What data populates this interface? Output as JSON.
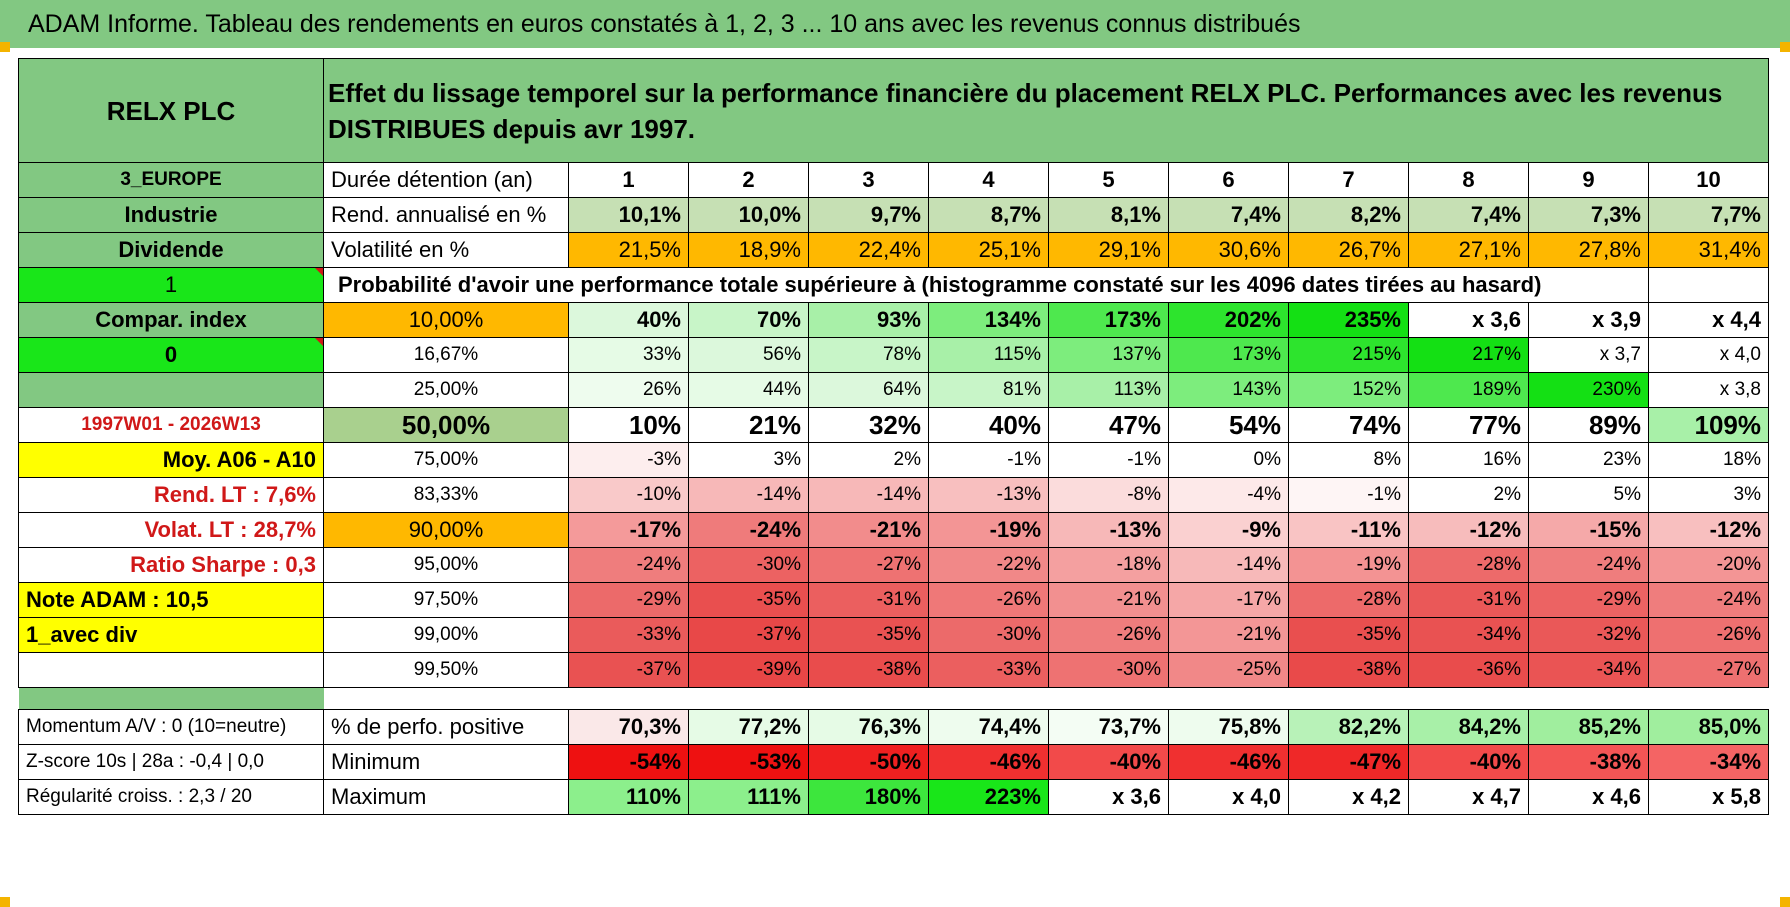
{
  "title": "ADAM Informe. Tableau des rendements en euros constatés à 1, 2, 3 ... 10 ans avec les revenus connus distribués",
  "header": {
    "left": "RELX PLC",
    "right": "Effet du lissage temporel sur la performance financière du placement RELX PLC. Performances avec les revenus DISTRIBUES depuis avr 1997."
  },
  "rows": [
    {
      "left": "3_EUROPE",
      "label": "Durée détention (an)",
      "values": [
        "1",
        "2",
        "3",
        "4",
        "5",
        "6",
        "7",
        "8",
        "9",
        "10"
      ]
    },
    {
      "left": "Industrie",
      "label": "Rend. annualisé en %",
      "values": [
        "10,1%",
        "10,0%",
        "9,7%",
        "8,7%",
        "8,1%",
        "7,4%",
        "8,2%",
        "7,4%",
        "7,3%",
        "7,7%"
      ]
    },
    {
      "left": "Dividende",
      "label": "Volatilité en %",
      "values": [
        "21,5%",
        "18,9%",
        "22,4%",
        "25,1%",
        "29,1%",
        "30,6%",
        "26,7%",
        "27,1%",
        "27,8%",
        "31,4%"
      ]
    },
    {
      "left": "1",
      "label": "Probabilité d'avoir une performance totale supérieure à (histogramme constaté sur les 4096 dates tirées au hasard)"
    },
    {
      "left": "Compar. index",
      "label": "10,00%",
      "values": [
        "40%",
        "70%",
        "93%",
        "134%",
        "173%",
        "202%",
        "235%",
        "x 3,6",
        "x 3,9",
        "x 4,4"
      ]
    },
    {
      "left": "0",
      "label": "16,67%",
      "values": [
        "33%",
        "56%",
        "78%",
        "115%",
        "137%",
        "173%",
        "215%",
        "217%",
        "x 3,7",
        "x 4,0"
      ]
    },
    {
      "left": "",
      "label": "25,00%",
      "values": [
        "26%",
        "44%",
        "64%",
        "81%",
        "113%",
        "143%",
        "152%",
        "189%",
        "230%",
        "x 3,8"
      ]
    },
    {
      "left": "1997W01 - 2026W13",
      "label": "50,00%",
      "values": [
        "10%",
        "21%",
        "32%",
        "40%",
        "47%",
        "54%",
        "74%",
        "77%",
        "89%",
        "109%"
      ]
    },
    {
      "left": "Moy. A06 - A10",
      "label": "75,00%",
      "values": [
        "-3%",
        "3%",
        "2%",
        "-1%",
        "-1%",
        "0%",
        "8%",
        "16%",
        "23%",
        "18%"
      ]
    },
    {
      "left": "Rend. LT :   7,6%",
      "label": "83,33%",
      "values": [
        "-10%",
        "-14%",
        "-14%",
        "-13%",
        "-8%",
        "-4%",
        "-1%",
        "2%",
        "5%",
        "3%"
      ]
    },
    {
      "left": "Volat. LT :   28,7%",
      "label": "90,00%",
      "values": [
        "-17%",
        "-24%",
        "-21%",
        "-19%",
        "-13%",
        "-9%",
        "-11%",
        "-12%",
        "-15%",
        "-12%"
      ]
    },
    {
      "left": "Ratio Sharpe :    0,3",
      "label": "95,00%",
      "values": [
        "-24%",
        "-30%",
        "-27%",
        "-22%",
        "-18%",
        "-14%",
        "-19%",
        "-28%",
        "-24%",
        "-20%"
      ]
    },
    {
      "left": "Note ADAM : 10,5",
      "label": "97,50%",
      "values": [
        "-29%",
        "-35%",
        "-31%",
        "-26%",
        "-21%",
        "-17%",
        "-28%",
        "-31%",
        "-29%",
        "-24%"
      ]
    },
    {
      "left": "1_avec div",
      "label": "99,00%",
      "values": [
        "-33%",
        "-37%",
        "-35%",
        "-30%",
        "-26%",
        "-21%",
        "-35%",
        "-34%",
        "-32%",
        "-26%"
      ]
    },
    {
      "left": "",
      "label": "99,50%",
      "values": [
        "-37%",
        "-39%",
        "-38%",
        "-33%",
        "-30%",
        "-25%",
        "-38%",
        "-36%",
        "-34%",
        "-27%"
      ]
    },
    {
      "left": "Momentum A/V : 0 (10=neutre)",
      "label": "% de perfo. positive",
      "values": [
        "70,3%",
        "77,2%",
        "76,3%",
        "74,4%",
        "73,7%",
        "75,8%",
        "82,2%",
        "84,2%",
        "85,2%",
        "85,0%"
      ]
    },
    {
      "left": "Z-score 10s | 28a : -0,4 | 0,0",
      "label": "Minimum",
      "values": [
        "-54%",
        "-53%",
        "-50%",
        "-46%",
        "-40%",
        "-46%",
        "-47%",
        "-40%",
        "-38%",
        "-34%"
      ]
    },
    {
      "left": "Régularité croiss. : 2,3 / 20",
      "label": "Maximum",
      "values": [
        "110%",
        "111%",
        "180%",
        "223%",
        "x 3,6",
        "x 4,0",
        "x 4,2",
        "x 4,7",
        "x 4,6",
        "x 5,8"
      ]
    }
  ],
  "colors": {
    "header_green": "#82c882",
    "bright_green": "#19e619",
    "yellow": "#ffff00",
    "orange": "#ffb800",
    "light_green": "#c6e0b4",
    "mid_green": "#a9d08e",
    "red_text": "#d01818"
  }
}
